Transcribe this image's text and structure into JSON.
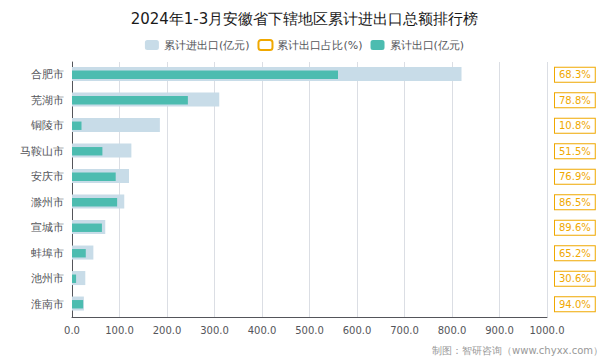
{
  "chart_data": {
    "type": "bar",
    "orientation": "horizontal",
    "title": "2024年1-3月安徽省下辖地区累计进出口总额排行榜",
    "annotation": "制图：智研咨询（www.chyxx.com）",
    "categories": [
      "合肥市",
      "芜湖市",
      "铜陵市",
      "马鞍山市",
      "安庆市",
      "滁州市",
      "宣城市",
      "蚌埠市",
      "池州市",
      "淮南市"
    ],
    "series": [
      {
        "name": "累计进出口(亿元)",
        "type": "bar",
        "color": "#c8dce8",
        "values": [
          820,
          310,
          185,
          125,
          120,
          110,
          70,
          45,
          28,
          25
        ]
      },
      {
        "name": "累计出口占比(%)",
        "type": "text",
        "color": "#f0a800",
        "values": [
          68.3,
          78.8,
          10.8,
          51.5,
          76.9,
          86.5,
          89.6,
          65.2,
          30.6,
          94.0
        ],
        "value_labels": [
          "68.3%",
          "78.8%",
          "10.8%",
          "51.5%",
          "76.9%",
          "86.5%",
          "89.6%",
          "65.2%",
          "30.6%",
          "94.0%"
        ]
      },
      {
        "name": "累计出口(亿元)",
        "type": "bar",
        "color": "#4cbcb0",
        "values": [
          560,
          244,
          20,
          64,
          92,
          95,
          63,
          29,
          8.6,
          23.5
        ]
      }
    ],
    "xlim": [
      0,
      1000
    ],
    "xticks": [
      {
        "value": 0,
        "label": "0.0"
      },
      {
        "value": 100,
        "label": "100.0"
      },
      {
        "value": 200,
        "label": "200.0"
      },
      {
        "value": 300,
        "label": "300.0"
      },
      {
        "value": 400,
        "label": "400.0"
      },
      {
        "value": 500,
        "label": "500.0"
      },
      {
        "value": 600,
        "label": "600.0"
      },
      {
        "value": 700,
        "label": "700.0"
      },
      {
        "value": 800,
        "label": "800.0"
      },
      {
        "value": 900,
        "label": "900.0"
      },
      {
        "value": 1000,
        "label": "1000.0"
      }
    ],
    "grid": true,
    "legend": "top"
  }
}
